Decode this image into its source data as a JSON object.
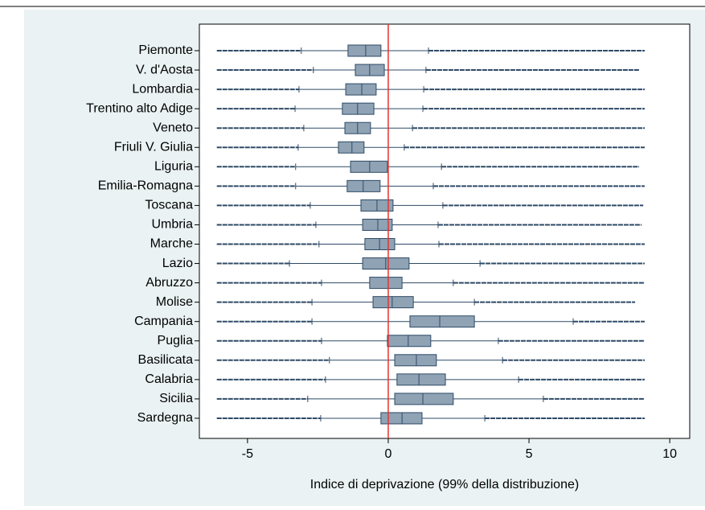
{
  "chart_data": {
    "type": "box",
    "xlabel": "Indice di deprivazione (99% della distribuzione)",
    "categories": [
      "Piemonte",
      "V. d'Aosta",
      "Lombardia",
      "Trentino alto Adige",
      "Veneto",
      "Friuli V. Giulia",
      "Liguria",
      "Emilia-Romagna",
      "Toscana",
      "Umbria",
      "Marche",
      "Lazio",
      "Abruzzo",
      "Molise",
      "Campania",
      "Puglia",
      "Basilicata",
      "Calabria",
      "Sicilia",
      "Sardegna"
    ],
    "min": [
      -6.09,
      -6.09,
      -6.09,
      -6.09,
      -6.09,
      -6.09,
      -6.09,
      -6.09,
      -6.09,
      -6.09,
      -6.09,
      -6.09,
      -6.09,
      -6.09,
      -6.09,
      -6.09,
      -6.09,
      -6.09,
      -6.09,
      -6.09
    ],
    "whisker_low": [
      -3.09,
      -2.66,
      -3.17,
      -3.31,
      -3.0,
      -3.2,
      -3.29,
      -3.29,
      -2.77,
      -2.57,
      -2.46,
      -3.51,
      -2.37,
      -2.71,
      -2.71,
      -2.37,
      -2.09,
      -2.23,
      -2.86,
      -2.4
    ],
    "q1": [
      -1.43,
      -1.17,
      -1.51,
      -1.63,
      -1.54,
      -1.77,
      -1.34,
      -1.46,
      -0.97,
      -0.91,
      -0.83,
      -0.91,
      -0.66,
      -0.54,
      0.77,
      -0.03,
      0.23,
      0.31,
      0.23,
      -0.26
    ],
    "median": [
      -0.8,
      -0.66,
      -0.94,
      -1.09,
      -1.09,
      -1.29,
      -0.66,
      -0.89,
      -0.4,
      -0.37,
      -0.31,
      -0.09,
      0,
      0.14,
      1.83,
      0.71,
      1.0,
      1.09,
      1.23,
      0.49
    ],
    "q3": [
      -0.26,
      -0.14,
      -0.43,
      -0.51,
      -0.63,
      -0.86,
      -0.03,
      -0.29,
      0.17,
      0.14,
      0.23,
      0.74,
      0.49,
      0.89,
      3.06,
      1.51,
      1.71,
      2.03,
      2.31,
      1.2
    ],
    "whisker_high": [
      1.43,
      1.34,
      1.26,
      1.23,
      0.86,
      0.57,
      1.89,
      1.6,
      1.94,
      1.77,
      1.8,
      3.26,
      2.31,
      3.06,
      6.57,
      3.91,
      4.06,
      4.63,
      5.51,
      3.43
    ],
    "max": [
      9.11,
      8.91,
      9.11,
      9.11,
      9.11,
      9.11,
      8.91,
      9.11,
      9.06,
      9.0,
      9.11,
      9.11,
      9.11,
      8.77,
      9.11,
      9.11,
      9.11,
      9.11,
      9.11,
      9.11
    ],
    "box_color": "#8fa3b5",
    "line_color": "#2e4a66",
    "xline": 0,
    "xline_color": "#e8322d",
    "xlim": [
      -6.71,
      10.71
    ],
    "xticks": [
      -5,
      0,
      5,
      10
    ]
  }
}
